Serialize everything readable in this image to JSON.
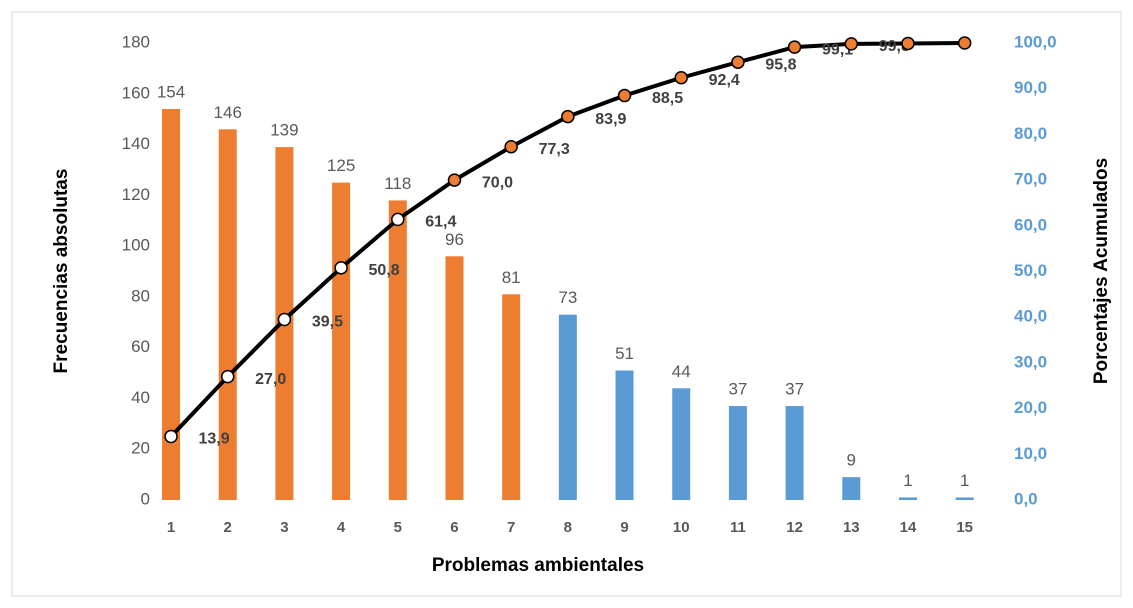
{
  "chart_data": {
    "type": "pareto",
    "x_label": "Problemas ambientales",
    "y_label": "Frecuencias absolutas",
    "y2_label": "Porcentajes Acumulados",
    "categories": [
      "1",
      "2",
      "3",
      "4",
      "5",
      "6",
      "7",
      "8",
      "9",
      "10",
      "11",
      "12",
      "13",
      "14",
      "15"
    ],
    "bars": {
      "values": [
        154,
        146,
        139,
        125,
        118,
        96,
        81,
        73,
        51,
        44,
        37,
        37,
        9,
        1,
        1
      ],
      "colors": [
        "#ed7d31",
        "#ed7d31",
        "#ed7d31",
        "#ed7d31",
        "#ed7d31",
        "#ed7d31",
        "#ed7d31",
        "#5b9bd5",
        "#5b9bd5",
        "#5b9bd5",
        "#5b9bd5",
        "#5b9bd5",
        "#5b9bd5",
        "#5b9bd5",
        "#5b9bd5"
      ]
    },
    "line": {
      "axis": "y2",
      "color": "#000000",
      "values": [
        13.9,
        27.0,
        39.5,
        50.8,
        61.4,
        70.0,
        77.3,
        83.9,
        88.5,
        92.4,
        95.8,
        99.1,
        99.8,
        99.9,
        100
      ],
      "value_labels": [
        "13,9",
        "27,0",
        "39,5",
        "50,8",
        "61,4",
        "70,0",
        "77,3",
        "83,9",
        "88,5",
        "92,4",
        "95,8",
        "99,1",
        "99,8",
        null,
        null
      ],
      "marker_colors": [
        "#ffffff",
        "#ffffff",
        "#ffffff",
        "#ffffff",
        "#ffffff",
        "#ed7d31",
        "#ed7d31",
        "#ed7d31",
        "#ed7d31",
        "#ed7d31",
        "#ed7d31",
        "#ed7d31",
        "#ed7d31",
        "#ed7d31",
        "#ed7d31"
      ]
    },
    "ylim": [
      0,
      180
    ],
    "yticks": [
      0,
      20,
      40,
      60,
      80,
      100,
      120,
      140,
      160,
      180
    ],
    "y2lim": [
      0,
      100
    ],
    "y2ticks": [
      {
        "value": 0,
        "label": "0,0"
      },
      {
        "value": 10,
        "label": "10,0"
      },
      {
        "value": 20,
        "label": "20,0"
      },
      {
        "value": 30,
        "label": "30,0"
      },
      {
        "value": 40,
        "label": "40,0"
      },
      {
        "value": 50,
        "label": "50,0"
      },
      {
        "value": 60,
        "label": "60,0"
      },
      {
        "value": 70,
        "label": "70,0"
      },
      {
        "value": 80,
        "label": "80,0"
      },
      {
        "value": 90,
        "label": "90,0"
      },
      {
        "value": 100,
        "label": "100,0"
      }
    ]
  }
}
